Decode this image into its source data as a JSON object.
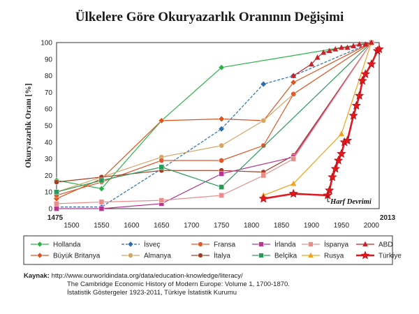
{
  "title": "Ülkelere Göre Okuryazarlık Oranının Değişimi",
  "chart_data": {
    "type": "line",
    "title": "Ülkelere Göre Okuryazarlık Oranının Değişimi",
    "ylabel": "Okuryazarlık Oranı [%]",
    "xlabel": "",
    "xlim": [
      1475,
      2013
    ],
    "ylim": [
      0,
      100
    ],
    "x_ticks": [
      "1475",
      "1500",
      "1550",
      "1600",
      "1650",
      "1700",
      "1750",
      "1800",
      "1850",
      "1900",
      "1950",
      "2000",
      "2013"
    ],
    "y_ticks": [
      "0",
      "10",
      "20",
      "30",
      "40",
      "50",
      "60",
      "70",
      "80",
      "90",
      "100"
    ],
    "grid": true,
    "legend_placement": "bottom",
    "annotation": "Harf Devrimi",
    "series": [
      {
        "name": "Hollanda",
        "color": "#2db34a",
        "marker": "diamond",
        "dashed": false,
        "x": [
          1475,
          1550,
          1650,
          1750,
          2000
        ],
        "y": [
          17,
          12,
          53,
          85,
          100
        ]
      },
      {
        "name": "Büyük Britanya",
        "color": "#d9541e",
        "marker": "diamond",
        "dashed": false,
        "x": [
          1475,
          1550,
          1650,
          1750,
          1820,
          1870,
          2000
        ],
        "y": [
          6,
          18,
          53,
          54,
          53,
          76,
          100
        ]
      },
      {
        "name": "İsveç",
        "color": "#2f6ea8",
        "marker": "diamond",
        "dashed": true,
        "x": [
          1475,
          1550,
          1650,
          1750,
          1820,
          1870,
          2000
        ],
        "y": [
          1,
          1,
          24,
          48,
          75,
          80,
          100
        ]
      },
      {
        "name": "Almanya",
        "color": "#d4a565",
        "marker": "circle",
        "dashed": false,
        "x": [
          1475,
          1550,
          1650,
          1750,
          1820,
          1870,
          2000
        ],
        "y": [
          10,
          19,
          31,
          38,
          53,
          69,
          100
        ]
      },
      {
        "name": "Fransa",
        "color": "#e2582a",
        "marker": "circle",
        "dashed": false,
        "x": [
          1475,
          1550,
          1650,
          1750,
          1820,
          1870,
          2000
        ],
        "y": [
          8,
          16,
          29,
          29,
          38,
          69,
          100
        ]
      },
      {
        "name": "İtalya",
        "color": "#a33c24",
        "marker": "circle",
        "dashed": false,
        "x": [
          1475,
          1550,
          1650,
          1750,
          1820,
          1870,
          2000
        ],
        "y": [
          16,
          19,
          23,
          23,
          22,
          32,
          100
        ]
      },
      {
        "name": "İrlanda",
        "color": "#b8358f",
        "marker": "square",
        "dashed": false,
        "x": [
          1475,
          1550,
          1650,
          1750,
          1870,
          2000
        ],
        "y": [
          0,
          0,
          3,
          21,
          31,
          100
        ]
      },
      {
        "name": "Belçika",
        "color": "#2a9a5a",
        "marker": "square",
        "dashed": false,
        "x": [
          1475,
          1550,
          1650,
          1750,
          2000
        ],
        "y": [
          10,
          17,
          25,
          13,
          100
        ]
      },
      {
        "name": "İspanya",
        "color": "#e88c8c",
        "marker": "square",
        "dashed": false,
        "x": [
          1475,
          1550,
          1650,
          1750,
          1820,
          1870,
          2000
        ],
        "y": [
          3,
          4,
          5,
          8,
          20,
          30,
          100
        ]
      },
      {
        "name": "Rusya",
        "color": "#f0a21a",
        "marker": "triangle",
        "dashed": false,
        "x": [
          1820,
          1870,
          1950,
          2000
        ],
        "y": [
          8,
          15,
          45,
          100
        ]
      },
      {
        "name": "ABD",
        "color": "#c7212b",
        "marker": "triangle",
        "dashed": false,
        "x": [
          1870,
          1900,
          1910,
          1920,
          1930,
          1940,
          1950,
          1960,
          1970,
          1980,
          1990,
          2000
        ],
        "y": [
          80,
          87,
          91,
          94,
          95,
          96,
          97,
          97,
          98,
          99,
          99,
          100
        ]
      },
      {
        "name": "Türkiye",
        "color": "#e3171e",
        "marker": "star",
        "dashed": false,
        "x": [
          1820,
          1870,
          1927,
          1930,
          1935,
          1940,
          1945,
          1950,
          1955,
          1960,
          1970,
          1975,
          1980,
          1985,
          1990,
          2000,
          2010,
          2013
        ],
        "y": [
          6,
          9,
          8,
          11,
          19,
          24,
          29,
          33,
          40,
          41,
          56,
          62,
          68,
          77,
          81,
          87,
          95,
          96
        ]
      }
    ]
  },
  "source": {
    "label": "Kaynak:",
    "lines": [
      "http://www.ourworldindata.org/data/education-knowledge/literacy/",
      "The Cambridge Economic History of Modern Europe: Volume 1, 1700-1870.",
      "İstatistik Göstergeler 1923-2011, Türkiye İstatistik Kurumu"
    ]
  }
}
